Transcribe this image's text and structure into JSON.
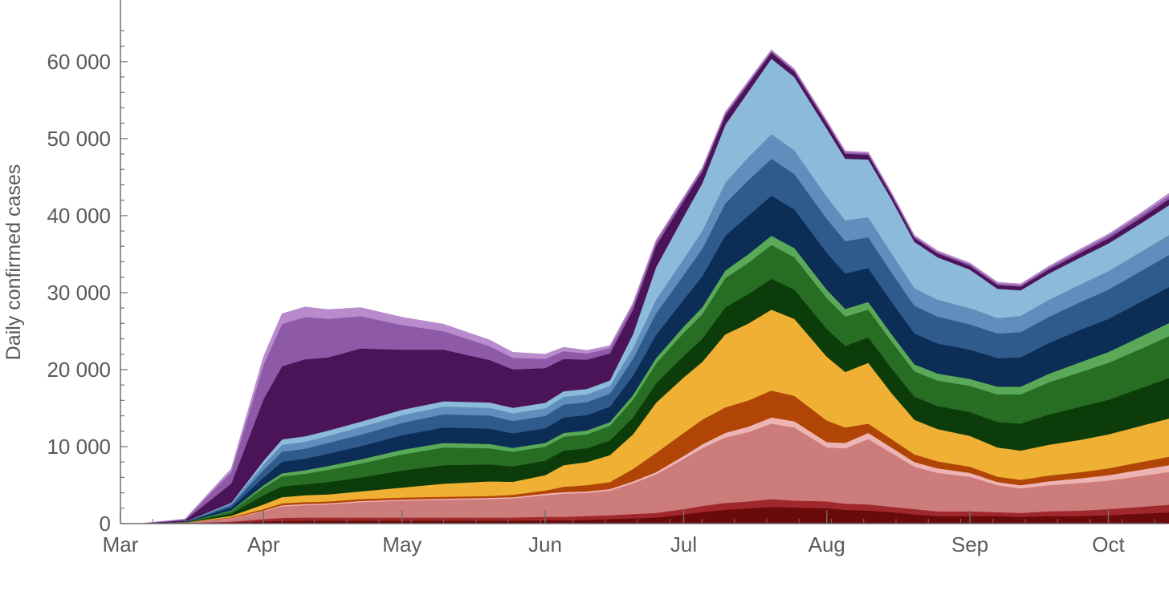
{
  "chart_data": {
    "type": "area",
    "stacked": true,
    "title": "",
    "xlabel": "",
    "ylabel": "Daily confirmed cases",
    "x_ticks": [
      "Mar",
      "Apr",
      "May",
      "Jun",
      "Jul",
      "Aug",
      "Sep",
      "Oct"
    ],
    "y_ticks": [
      "0",
      "10 000",
      "20 000",
      "30 000",
      "40 000",
      "50 000",
      "60 000"
    ],
    "ylim": [
      0,
      68000
    ],
    "xlim": [
      "2020-03-01",
      "2020-10-15"
    ],
    "legend": "none",
    "x": [
      "2020-03-05",
      "2020-03-15",
      "2020-03-25",
      "2020-04-01",
      "2020-04-05",
      "2020-04-10",
      "2020-04-15",
      "2020-04-22",
      "2020-05-01",
      "2020-05-10",
      "2020-05-20",
      "2020-05-25",
      "2020-06-01",
      "2020-06-05",
      "2020-06-10",
      "2020-06-15",
      "2020-06-20",
      "2020-06-25",
      "2020-07-01",
      "2020-07-05",
      "2020-07-10",
      "2020-07-15",
      "2020-07-20",
      "2020-07-25",
      "2020-08-01",
      "2020-08-05",
      "2020-08-10",
      "2020-08-15",
      "2020-08-20",
      "2020-08-25",
      "2020-09-01",
      "2020-09-07",
      "2020-09-12",
      "2020-09-18",
      "2020-09-25",
      "2020-10-01",
      "2020-10-08",
      "2020-10-15"
    ],
    "series": [
      {
        "color": "#6b0a0a",
        "values": [
          0,
          50,
          150,
          300,
          350,
          400,
          400,
          400,
          400,
          400,
          400,
          400,
          450,
          450,
          500,
          600,
          700,
          800,
          1200,
          1500,
          1800,
          2000,
          2200,
          2100,
          2000,
          1800,
          1700,
          1500,
          1200,
          1000,
          1000,
          1000,
          900,
          1000,
          1000,
          1100,
          1300,
          1500
        ]
      },
      {
        "color": "#a0282c",
        "values": [
          0,
          30,
          120,
          300,
          400,
          400,
          400,
          400,
          400,
          400,
          400,
          400,
          450,
          450,
          500,
          500,
          550,
          600,
          700,
          800,
          900,
          900,
          1000,
          900,
          900,
          800,
          800,
          700,
          700,
          600,
          600,
          500,
          500,
          600,
          700,
          800,
          900,
          1000
        ]
      },
      {
        "color": "#cd7c7c",
        "values": [
          0,
          40,
          400,
          1000,
          1500,
          1600,
          1700,
          2000,
          2200,
          2300,
          2400,
          2500,
          2800,
          3000,
          3000,
          3200,
          4000,
          5000,
          6500,
          7500,
          8500,
          9000,
          9800,
          9500,
          7000,
          7200,
          8500,
          7000,
          5500,
          5000,
          4500,
          3500,
          3200,
          3400,
          3600,
          3700,
          4000,
          4300
        ]
      },
      {
        "color": "#eeb4b4",
        "values": [
          0,
          0,
          50,
          100,
          150,
          150,
          150,
          150,
          150,
          150,
          150,
          150,
          200,
          200,
          200,
          200,
          250,
          300,
          400,
          500,
          600,
          700,
          800,
          800,
          700,
          700,
          800,
          700,
          600,
          600,
          500,
          400,
          400,
          500,
          600,
          700,
          800,
          900
        ]
      },
      {
        "color": "#b04505",
        "values": [
          0,
          10,
          100,
          200,
          250,
          250,
          250,
          250,
          250,
          250,
          250,
          300,
          400,
          700,
          800,
          900,
          1600,
          2500,
          3000,
          3200,
          3300,
          3400,
          3500,
          3300,
          2800,
          2000,
          1200,
          1100,
          1000,
          900,
          800,
          700,
          700,
          750,
          800,
          900,
          1000,
          1100
        ]
      },
      {
        "color": "#efb034",
        "values": [
          0,
          10,
          200,
          600,
          800,
          900,
          900,
          1000,
          1300,
          1700,
          1900,
          1700,
          2000,
          2800,
          3000,
          3500,
          4500,
          6500,
          7200,
          7500,
          9500,
          10000,
          10500,
          10000,
          8300,
          7200,
          7900,
          6000,
          4500,
          4200,
          4000,
          3800,
          3800,
          4000,
          4200,
          4400,
          4700,
          5000
        ]
      },
      {
        "color": "#0c3c09",
        "values": [
          0,
          20,
          300,
          1200,
          1400,
          1400,
          1600,
          1800,
          2200,
          2400,
          2200,
          2000,
          1900,
          1900,
          1800,
          1900,
          2200,
          2500,
          2800,
          3000,
          3500,
          3800,
          4000,
          3800,
          3600,
          3400,
          3300,
          3200,
          3000,
          3000,
          3100,
          3300,
          3500,
          3900,
          4300,
          4500,
          4900,
          5300
        ]
      },
      {
        "color": "#276e24",
        "values": [
          0,
          20,
          300,
          1000,
          1300,
          1400,
          1600,
          1800,
          2100,
          2300,
          2100,
          1900,
          1800,
          1800,
          1800,
          1900,
          2300,
          2600,
          3000,
          3200,
          3800,
          4100,
          4400,
          4200,
          4000,
          3800,
          3600,
          3500,
          3300,
          3300,
          3400,
          3600,
          3800,
          4200,
          4500,
          4800,
          5100,
          5500
        ]
      },
      {
        "color": "#5aa959",
        "values": [
          0,
          10,
          100,
          300,
          400,
          450,
          500,
          550,
          600,
          600,
          550,
          500,
          500,
          500,
          500,
          500,
          600,
          700,
          800,
          900,
          1000,
          1100,
          1200,
          1200,
          1100,
          1000,
          1000,
          950,
          900,
          900,
          900,
          1000,
          1000,
          1100,
          1300,
          1400,
          1600,
          1700
        ]
      },
      {
        "color": "#0c2d55",
        "values": [
          0,
          30,
          400,
          1000,
          1500,
          1500,
          1600,
          1700,
          1900,
          2000,
          2000,
          1900,
          1900,
          2000,
          2000,
          2000,
          2500,
          3000,
          3500,
          4000,
          4500,
          5000,
          5200,
          5000,
          4800,
          4600,
          4400,
          4200,
          4000,
          3900,
          3800,
          3700,
          3800,
          4000,
          4200,
          4300,
          4500,
          4700
        ]
      },
      {
        "color": "#2f5b8c",
        "values": [
          0,
          20,
          300,
          1000,
          1300,
          1300,
          1400,
          1500,
          1600,
          1700,
          1700,
          1600,
          1600,
          1700,
          1700,
          1700,
          2200,
          2800,
          3200,
          3600,
          4200,
          4600,
          4800,
          4600,
          4400,
          4200,
          4000,
          3800,
          3600,
          3500,
          3300,
          3200,
          3300,
          3400,
          3600,
          3800,
          4000,
          4200
        ]
      },
      {
        "color": "#5f8ebd",
        "values": [
          0,
          10,
          200,
          700,
          900,
          900,
          900,
          1000,
          1000,
          1000,
          1000,
          1000,
          1000,
          1000,
          1000,
          1000,
          1400,
          1800,
          2100,
          2300,
          2700,
          3000,
          3200,
          3100,
          2900,
          2700,
          2600,
          2500,
          2300,
          2200,
          2100,
          2000,
          2100,
          2200,
          2300,
          2400,
          2500,
          2600
        ]
      },
      {
        "color": "#8cbad9",
        "values": [
          0,
          5,
          100,
          500,
          700,
          700,
          700,
          700,
          700,
          700,
          700,
          700,
          700,
          700,
          700,
          700,
          1800,
          4200,
          5500,
          6200,
          7500,
          8500,
          9800,
          9500,
          8800,
          8000,
          7500,
          7000,
          6000,
          5500,
          5000,
          3800,
          3300,
          3400,
          3500,
          3600,
          3700,
          3900
        ]
      },
      {
        "color": "#4c1458",
        "values": [
          0,
          200,
          2500,
          8000,
          9500,
          10000,
          9500,
          9500,
          7800,
          6700,
          5500,
          5000,
          4500,
          4200,
          3800,
          3500,
          3200,
          2800,
          2000,
          1500,
          1200,
          1000,
          800,
          700,
          700,
          650,
          600,
          550,
          500,
          500,
          500,
          500,
          500,
          550,
          600,
          650,
          700,
          800
        ]
      },
      {
        "color": "#8e5aa8",
        "values": [
          0,
          100,
          1500,
          4500,
          5500,
          5500,
          5000,
          4200,
          3200,
          2400,
          1800,
          1500,
          1200,
          1000,
          800,
          700,
          600,
          500,
          400,
          350,
          300,
          250,
          200,
          200,
          200,
          200,
          200,
          200,
          200,
          200,
          200,
          200,
          200,
          250,
          300,
          350,
          400,
          450
        ]
      },
      {
        "color": "#b88bcc",
        "values": [
          0,
          50,
          400,
          1000,
          1300,
          1300,
          1200,
          1100,
          1000,
          900,
          800,
          700,
          600,
          500,
          400,
          300,
          250,
          200,
          150,
          150,
          150,
          150,
          150,
          150,
          150,
          150,
          150,
          150,
          150,
          150,
          150,
          150,
          150,
          150,
          200,
          200,
          250,
          300
        ]
      }
    ]
  }
}
